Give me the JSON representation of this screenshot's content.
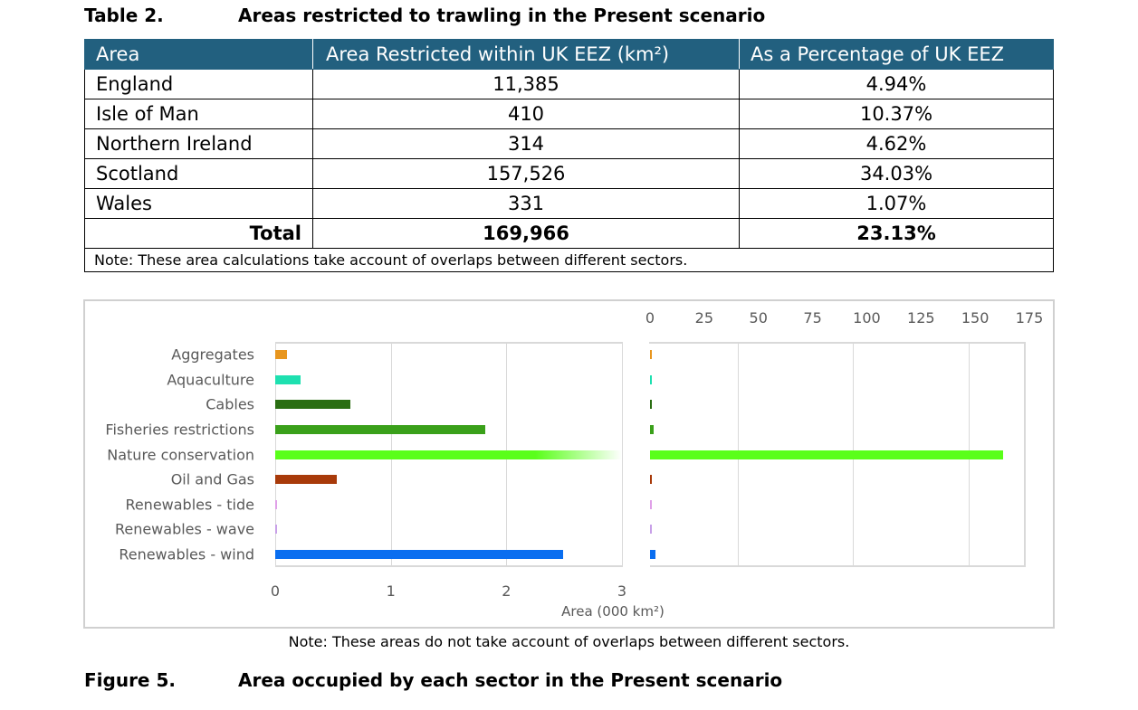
{
  "table_caption": {
    "number": "Table 2.",
    "title": "Areas restricted to trawling in the Present scenario"
  },
  "table": {
    "headers": [
      "Area",
      "Area Restricted within UK EEZ (km²)",
      "As a Percentage of UK EEZ"
    ],
    "rows": [
      [
        "England",
        "11,385",
        "4.94%"
      ],
      [
        "Isle of Man",
        "410",
        "10.37%"
      ],
      [
        "Northern Ireland",
        "314",
        "4.62%"
      ],
      [
        "Scotland",
        "157,526",
        "34.03%"
      ],
      [
        "Wales",
        "331",
        "1.07%"
      ]
    ],
    "total": [
      "Total",
      "169,966",
      "23.13%"
    ],
    "note": "Note: These area calculations take account of overlaps between different sectors."
  },
  "chart_data": {
    "type": "bar",
    "orientation": "horizontal",
    "categories": [
      "Aggregates",
      "Aquaculture",
      "Cables",
      "Fisheries restrictions",
      "Nature conservation",
      "Oil and Gas",
      "Renewables - tide",
      "Renewables - wave",
      "Renewables - wind"
    ],
    "values": [
      0.1,
      0.22,
      0.65,
      1.82,
      163,
      0.53,
      0.01,
      0.01,
      2.49
    ],
    "colors": [
      "#e8961e",
      "#1ee0b0",
      "#2a6e12",
      "#3aa01a",
      "#5aff1a",
      "#a83a0a",
      "#e0a0e8",
      "#c8a0e8",
      "#0a6ef0"
    ],
    "xlabel": "Area (000 km²)",
    "left_axis": {
      "xlim": [
        0,
        3
      ],
      "ticks": [
        "0",
        "1",
        "2",
        "3"
      ]
    },
    "right_axis": {
      "xlim": [
        0,
        175
      ],
      "ticks": [
        "0",
        "25",
        "50",
        "75",
        "100",
        "125",
        "150",
        "175"
      ]
    },
    "note": "Note: These areas do not take account of overlaps between different sectors."
  },
  "figure_caption": {
    "number": "Figure 5.",
    "title": "Area occupied by each sector in the Present scenario"
  }
}
